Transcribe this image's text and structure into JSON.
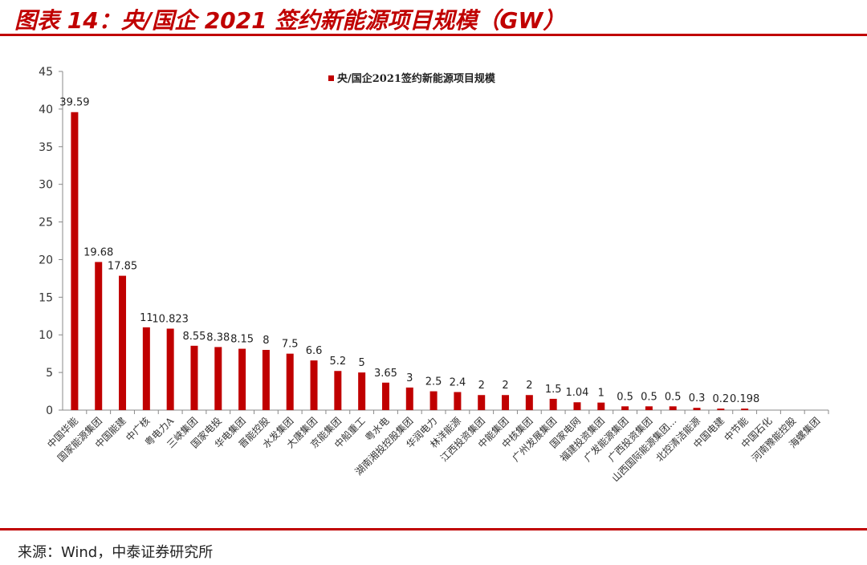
{
  "header": {
    "title": "图表 14：央/国企 2021 签约新能源项目规模（GW）"
  },
  "footer": {
    "source": "来源：Wind，中泰证券研究所"
  },
  "chart_data": {
    "type": "bar",
    "legend": "央/国企2021签约新能源项目规模",
    "legend_position": "top-center",
    "bar_color": "#c00000",
    "ylim": [
      0,
      45
    ],
    "yticks": [
      0,
      5,
      10,
      15,
      20,
      25,
      30,
      35,
      40,
      45
    ],
    "grid": false,
    "categories": [
      "中国华能",
      "国家能源集团",
      "中国能建",
      "中广核",
      "粤电力A",
      "三峡集团",
      "国家电投",
      "华电集团",
      "晋能控股",
      "水发集团",
      "大唐集团",
      "京能集团",
      "中船重工",
      "粤水电",
      "湖南湘投控股集团",
      "华润电力",
      "林洋能源",
      "江西投资集团",
      "中能集团",
      "中核集团",
      "广州发展集团",
      "国家电网",
      "福建投资集团",
      "广发能源集团",
      "广西投资集团",
      "山西国际能源集团...",
      "北控清洁能源",
      "中国电建",
      "中节能",
      "中国石化",
      "河南豫能控股",
      "海螺集团"
    ],
    "values": [
      39.59,
      19.68,
      17.85,
      11,
      10.823,
      8.55,
      8.38,
      8.15,
      8,
      7.5,
      6.6,
      5.2,
      5,
      3.65,
      3,
      2.5,
      2.4,
      2,
      2,
      2,
      1.5,
      1.04,
      1,
      0.5,
      0.5,
      0.5,
      0.3,
      0.2,
      0.198,
      0,
      0,
      0
    ],
    "labels": [
      "39.59",
      "19.68",
      "17.85",
      "11",
      "10.823",
      "8.55",
      "8.38",
      "8.15",
      "8",
      "7.5",
      "6.6",
      "5.2",
      "5",
      "3.65",
      "3",
      "2.5",
      "2.4",
      "2",
      "2",
      "2",
      "1.5",
      "1.04",
      "1",
      "0.5",
      "0.5",
      "0.5",
      "0.3",
      "0.2",
      "0.198",
      "",
      "",
      ""
    ]
  }
}
